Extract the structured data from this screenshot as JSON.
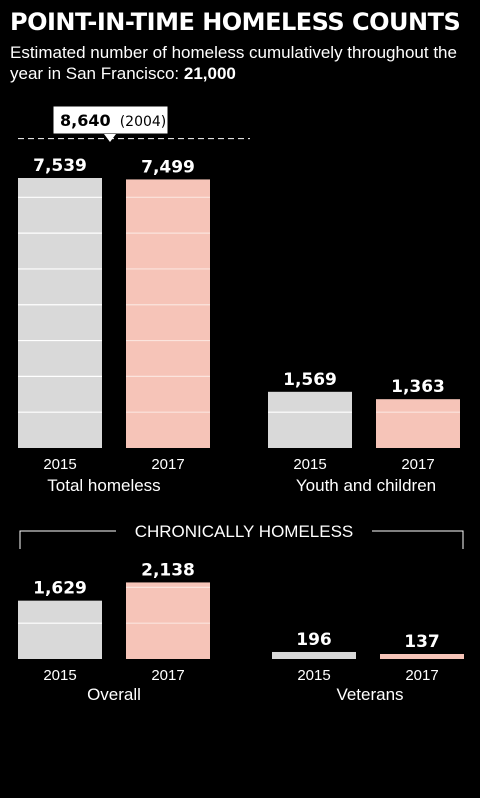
{
  "title": "POINT-IN-TIME HOMELESS COUNTS",
  "subtitle_text": "Estimated number of homeless cumulatively throughout the year in San Francisco:",
  "subtitle_value": "21,000",
  "colors": {
    "y2015": "#d9d9d9",
    "y2017": "#f6c4b8",
    "background": "#000000",
    "text": "#ffffff"
  },
  "annotation": {
    "value": "8,640",
    "year": "(2004)",
    "numeric": 8640
  },
  "section_label": "CHRONICALLY HOMELESS",
  "chart_data": [
    {
      "type": "bar",
      "title": "Total homeless",
      "categories": [
        "2015",
        "2017"
      ],
      "values": [
        7539,
        7499
      ],
      "labels": [
        "7,539",
        "7,499"
      ],
      "reference_line": {
        "value": 8640,
        "label": "8,640 (2004)"
      }
    },
    {
      "type": "bar",
      "title": "Youth and children",
      "categories": [
        "2015",
        "2017"
      ],
      "values": [
        1569,
        1363
      ],
      "labels": [
        "1,569",
        "1,363"
      ]
    },
    {
      "type": "bar",
      "title": "Overall",
      "group": "CHRONICALLY HOMELESS",
      "categories": [
        "2015",
        "2017"
      ],
      "values": [
        1629,
        2138
      ],
      "labels": [
        "1,629",
        "2,138"
      ]
    },
    {
      "type": "bar",
      "title": "Veterans",
      "group": "CHRONICALLY HOMELESS",
      "categories": [
        "2015",
        "2017"
      ],
      "values": [
        196,
        137
      ],
      "labels": [
        "196",
        "137"
      ]
    }
  ]
}
